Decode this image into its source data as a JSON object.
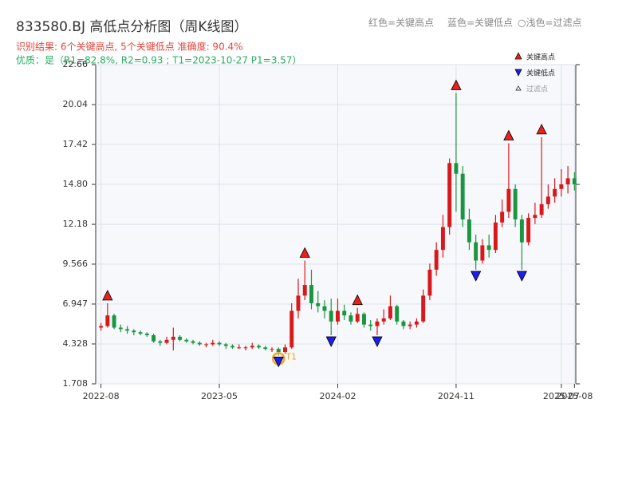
{
  "chart_data": {
    "type": "candlestick",
    "title": "833580.BJ 高低点分析图（周K线图）",
    "subtitle": "识别结果: 6个关键高点, 5个关键低点  准确度: 90.4%",
    "quality_note": "优质：是（R1=82.8%, R2=0.93 ; T1=2023-10-27 P1=3.57）",
    "header_legend": [
      "红色=关键高点",
      "蓝色=关键低点",
      "○浅色=过滤点"
    ],
    "up_color": "#d7191c",
    "down_color": "#1a9641",
    "grid": true,
    "xlim": [
      -0.4,
      36.1
    ],
    "ylim": [
      1.708,
      22.66
    ],
    "xticks": [
      {
        "value": 0,
        "label": "2022-08"
      },
      {
        "value": 9,
        "label": "2023-05"
      },
      {
        "value": 18,
        "label": "2024-02"
      },
      {
        "value": 27,
        "label": "2024-11"
      },
      {
        "value": 35,
        "label": "2025-07"
      },
      {
        "value": 36,
        "label": "2025-08"
      }
    ],
    "yticks": [
      1.708,
      4.328,
      6.947,
      9.566,
      12.18,
      {
        "value": 14.8,
        "label": "14.80"
      },
      17.42,
      20.04,
      22.66
    ],
    "x": [
      0,
      0.5,
      1,
      1.5,
      2,
      2.5,
      3,
      3.5,
      4,
      4.5,
      5,
      5.5,
      6,
      6.5,
      7,
      7.5,
      8,
      8.5,
      9,
      9.5,
      10,
      10.5,
      11,
      11.5,
      12,
      12.5,
      13,
      13.5,
      14,
      14.5,
      15,
      15.5,
      16,
      16.5,
      17,
      17.5,
      18,
      18.5,
      19,
      19.5,
      20,
      20.5,
      21,
      21.5,
      22,
      22.5,
      23,
      23.5,
      24,
      24.5,
      25,
      25.5,
      26,
      26.5,
      27,
      27.5,
      28,
      28.5,
      29,
      29.5,
      30,
      30.5,
      31,
      31.5,
      32,
      32.5,
      33,
      33.5,
      34,
      34.5,
      35,
      35.5,
      36
    ],
    "open": [
      5.4,
      5.5,
      6.2,
      5.4,
      5.3,
      5.2,
      5.1,
      5.0,
      4.9,
      4.5,
      4.4,
      4.6,
      4.8,
      4.6,
      4.5,
      4.4,
      4.3,
      4.3,
      4.4,
      4.3,
      4.2,
      4.1,
      4.1,
      4.1,
      4.2,
      4.1,
      4.0,
      4.0,
      3.8,
      4.1,
      6.5,
      7.5,
      8.2,
      7.0,
      6.8,
      6.5,
      5.8,
      6.5,
      6.2,
      5.8,
      6.3,
      5.6,
      5.5,
      5.8,
      6.0,
      6.8,
      5.8,
      5.5,
      5.6,
      5.8,
      7.5,
      9.2,
      10.5,
      12.0,
      16.2,
      15.5,
      12.5,
      11.0,
      9.8,
      10.8,
      10.5,
      12.3,
      13.0,
      14.5,
      12.5,
      11.0,
      12.6,
      12.8,
      13.5,
      14.0,
      14.5,
      14.8,
      15.2
    ],
    "high": [
      5.7,
      7.0,
      6.3,
      5.6,
      5.5,
      5.3,
      5.2,
      5.1,
      5.0,
      4.6,
      4.8,
      5.4,
      4.9,
      4.7,
      4.6,
      4.5,
      4.4,
      4.6,
      4.5,
      4.4,
      4.3,
      4.3,
      4.2,
      4.4,
      4.3,
      4.2,
      4.1,
      4.1,
      4.3,
      7.0,
      8.6,
      9.8,
      9.2,
      7.8,
      7.2,
      7.3,
      7.3,
      6.9,
      6.4,
      6.7,
      6.4,
      5.9,
      6.0,
      6.6,
      7.5,
      6.9,
      5.9,
      5.8,
      6.0,
      7.9,
      9.6,
      11.0,
      12.8,
      16.5,
      20.8,
      16.0,
      13.2,
      11.5,
      11.2,
      11.5,
      12.8,
      13.8,
      17.5,
      14.8,
      12.8,
      12.9,
      13.6,
      17.9,
      14.8,
      15.2,
      15.8,
      16.0,
      15.6
    ],
    "low": [
      5.2,
      5.4,
      5.3,
      5.1,
      5.0,
      4.9,
      4.9,
      4.8,
      4.4,
      4.2,
      4.3,
      3.9,
      4.5,
      4.4,
      4.3,
      4.2,
      4.1,
      4.2,
      4.2,
      4.0,
      4.0,
      4.0,
      3.9,
      4.0,
      4.0,
      3.9,
      3.8,
      3.57,
      3.7,
      4.0,
      6.0,
      7.2,
      6.6,
      6.4,
      6.0,
      4.9,
      5.6,
      5.9,
      5.6,
      5.7,
      5.4,
      5.2,
      4.9,
      5.6,
      5.9,
      5.6,
      5.3,
      5.3,
      5.4,
      5.7,
      7.2,
      8.8,
      10.0,
      11.5,
      13.0,
      12.0,
      10.5,
      9.2,
      9.6,
      10.0,
      10.3,
      12.0,
      12.6,
      12.0,
      9.2,
      10.8,
      12.2,
      12.6,
      13.2,
      13.6,
      14.0,
      14.2,
      14.4
    ],
    "close": [
      5.5,
      6.2,
      5.4,
      5.3,
      5.2,
      5.1,
      5.0,
      4.9,
      4.5,
      4.4,
      4.6,
      4.8,
      4.6,
      4.5,
      4.4,
      4.3,
      4.3,
      4.4,
      4.3,
      4.2,
      4.1,
      4.1,
      4.1,
      4.2,
      4.1,
      4.0,
      4.0,
      3.8,
      4.1,
      6.5,
      7.5,
      8.2,
      7.0,
      6.8,
      6.5,
      5.8,
      6.5,
      6.2,
      5.8,
      6.3,
      5.6,
      5.5,
      5.8,
      6.0,
      6.8,
      5.8,
      5.5,
      5.6,
      5.8,
      7.5,
      9.2,
      10.5,
      12.0,
      16.2,
      15.5,
      12.5,
      11.0,
      9.8,
      10.8,
      10.5,
      12.3,
      13.0,
      14.5,
      12.5,
      11.0,
      12.6,
      12.8,
      13.5,
      14.0,
      14.5,
      14.8,
      15.2,
      14.8
    ],
    "key_highs": {
      "name": "关键高点",
      "color": "#e8211c",
      "x": [
        0.5,
        15.5,
        19.5,
        27,
        31,
        33.5
      ],
      "values": [
        7.0,
        9.8,
        6.7,
        20.8,
        17.5,
        17.9
      ]
    },
    "key_lows": {
      "name": "关键低点",
      "color": "#1d1df0",
      "x": [
        13.5,
        17.5,
        21,
        28.5,
        32
      ],
      "values": [
        3.57,
        4.9,
        4.9,
        9.2,
        9.2
      ]
    },
    "filtered": {
      "name": "过滤点"
    },
    "t1": {
      "label": "T1",
      "x": 13.5,
      "value": 3.57,
      "color": "#f5a623"
    }
  }
}
